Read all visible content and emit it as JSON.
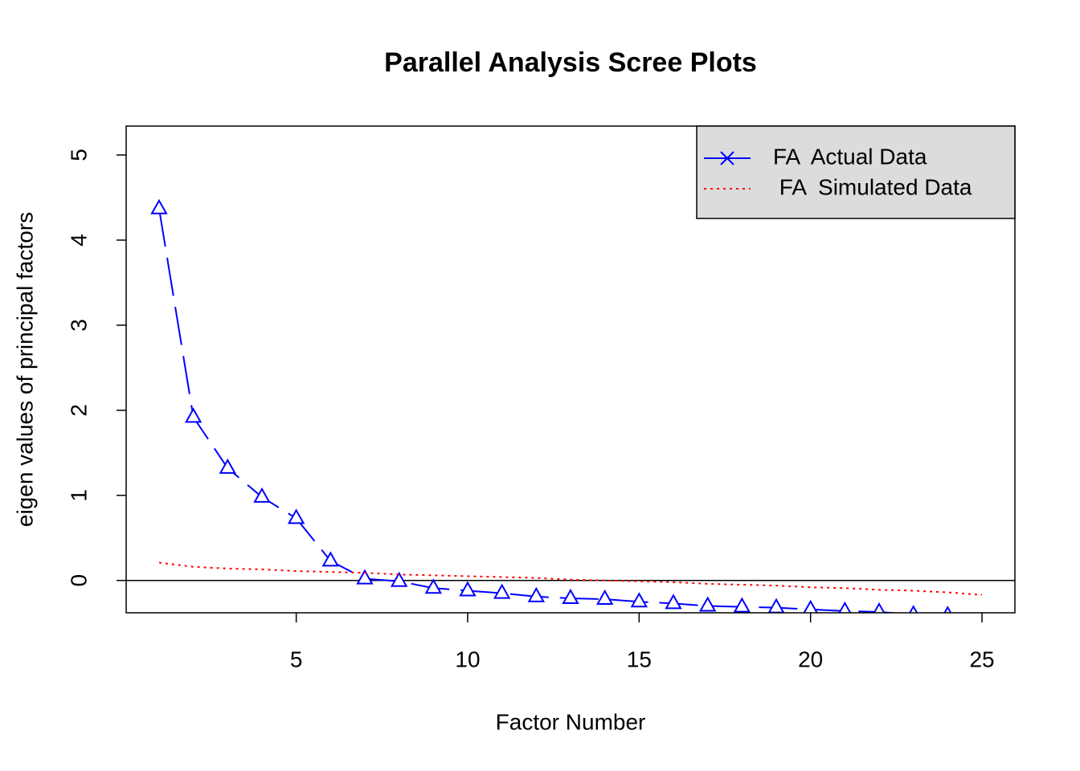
{
  "chart_data": {
    "type": "line",
    "title": "Parallel Analysis Scree Plots",
    "x_label": "Factor Number",
    "y_label": "eigen values of principal factors",
    "xlim": [
      0.04,
      25.96
    ],
    "xticks": [
      5,
      10,
      15,
      20,
      25
    ],
    "ylim": [
      -0.38,
      5.34
    ],
    "yticks": [
      0,
      1,
      2,
      3,
      4,
      5
    ],
    "reference_line": 0,
    "legend": "top-right",
    "series": [
      {
        "name": "FA  Actual Data",
        "color": "#0000ff",
        "x": [
          1,
          2,
          3,
          4,
          5,
          6,
          7,
          8,
          9,
          10,
          11,
          12,
          13,
          14,
          15,
          16,
          17,
          18,
          19,
          20,
          21,
          22,
          23,
          24
        ],
        "values": [
          4.37,
          1.92,
          1.32,
          0.98,
          0.73,
          0.23,
          0.02,
          -0.01,
          -0.09,
          -0.12,
          -0.15,
          -0.19,
          -0.21,
          -0.22,
          -0.25,
          -0.27,
          -0.3,
          -0.31,
          -0.32,
          -0.34,
          -0.36,
          -0.37,
          -0.4,
          -0.41
        ]
      },
      {
        "name": " FA  Simulated Data",
        "color": "#ff0000",
        "x": [
          1,
          2,
          3,
          4,
          5,
          6,
          7,
          8,
          9,
          10,
          11,
          12,
          13,
          14,
          15,
          16,
          17,
          18,
          19,
          20,
          21,
          22,
          23,
          24,
          25
        ],
        "values": [
          0.21,
          0.16,
          0.14,
          0.13,
          0.11,
          0.1,
          0.09,
          0.07,
          0.06,
          0.05,
          0.04,
          0.03,
          0.01,
          0.0,
          -0.01,
          -0.02,
          -0.04,
          -0.05,
          -0.06,
          -0.08,
          -0.09,
          -0.11,
          -0.12,
          -0.14,
          -0.17
        ]
      }
    ]
  }
}
